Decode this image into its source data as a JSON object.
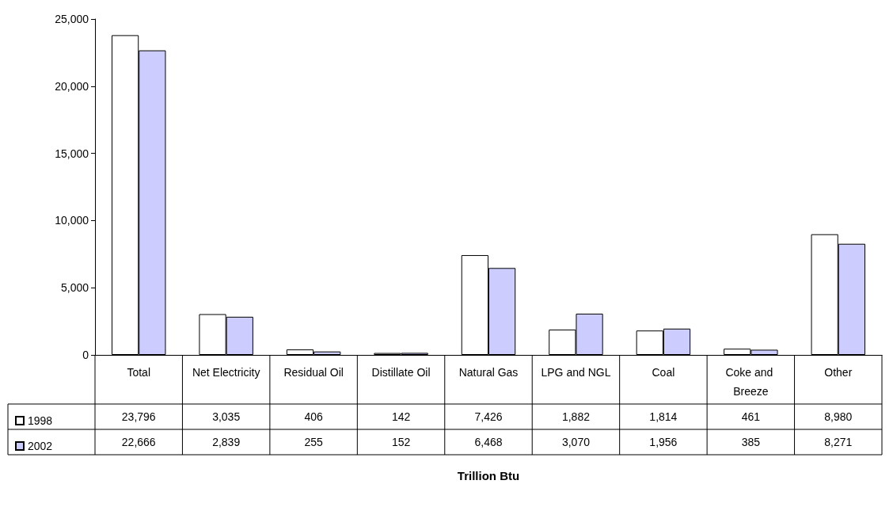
{
  "chart_data": {
    "type": "bar",
    "annotations": [
      "Trillion Btu"
    ],
    "categories": [
      "Total",
      "Net Electricity",
      "Residual Oil",
      "Distillate Oil",
      "Natural Gas",
      "LPG and NGL",
      "Coal",
      "Coke and Breeze",
      "Other"
    ],
    "series": [
      {
        "name": "1998",
        "color": "#ffffff",
        "values": [
          23796,
          3035,
          406,
          142,
          7426,
          1882,
          1814,
          461,
          8980
        ],
        "value_labels": [
          "23,796",
          "3,035",
          "406",
          "142",
          "7,426",
          "1,882",
          "1,814",
          "461",
          "8,980"
        ]
      },
      {
        "name": "2002",
        "color": "#ccccff",
        "values": [
          22666,
          2839,
          255,
          152,
          6468,
          3070,
          1956,
          385,
          8271
        ],
        "value_labels": [
          "22,666",
          "2,839",
          "255",
          "152",
          "6,468",
          "3,070",
          "1,956",
          "385",
          "8,271"
        ]
      }
    ],
    "ylim": [
      0,
      25000
    ],
    "yticks": [
      {
        "value": 0,
        "label": "0"
      },
      {
        "value": 5000,
        "label": "5,000"
      },
      {
        "value": 10000,
        "label": "10,000"
      },
      {
        "value": 15000,
        "label": "15,000"
      },
      {
        "value": 20000,
        "label": "20,000"
      },
      {
        "value": 25000,
        "label": "25,000"
      }
    ],
    "grid": false,
    "legend": "bottom left"
  }
}
